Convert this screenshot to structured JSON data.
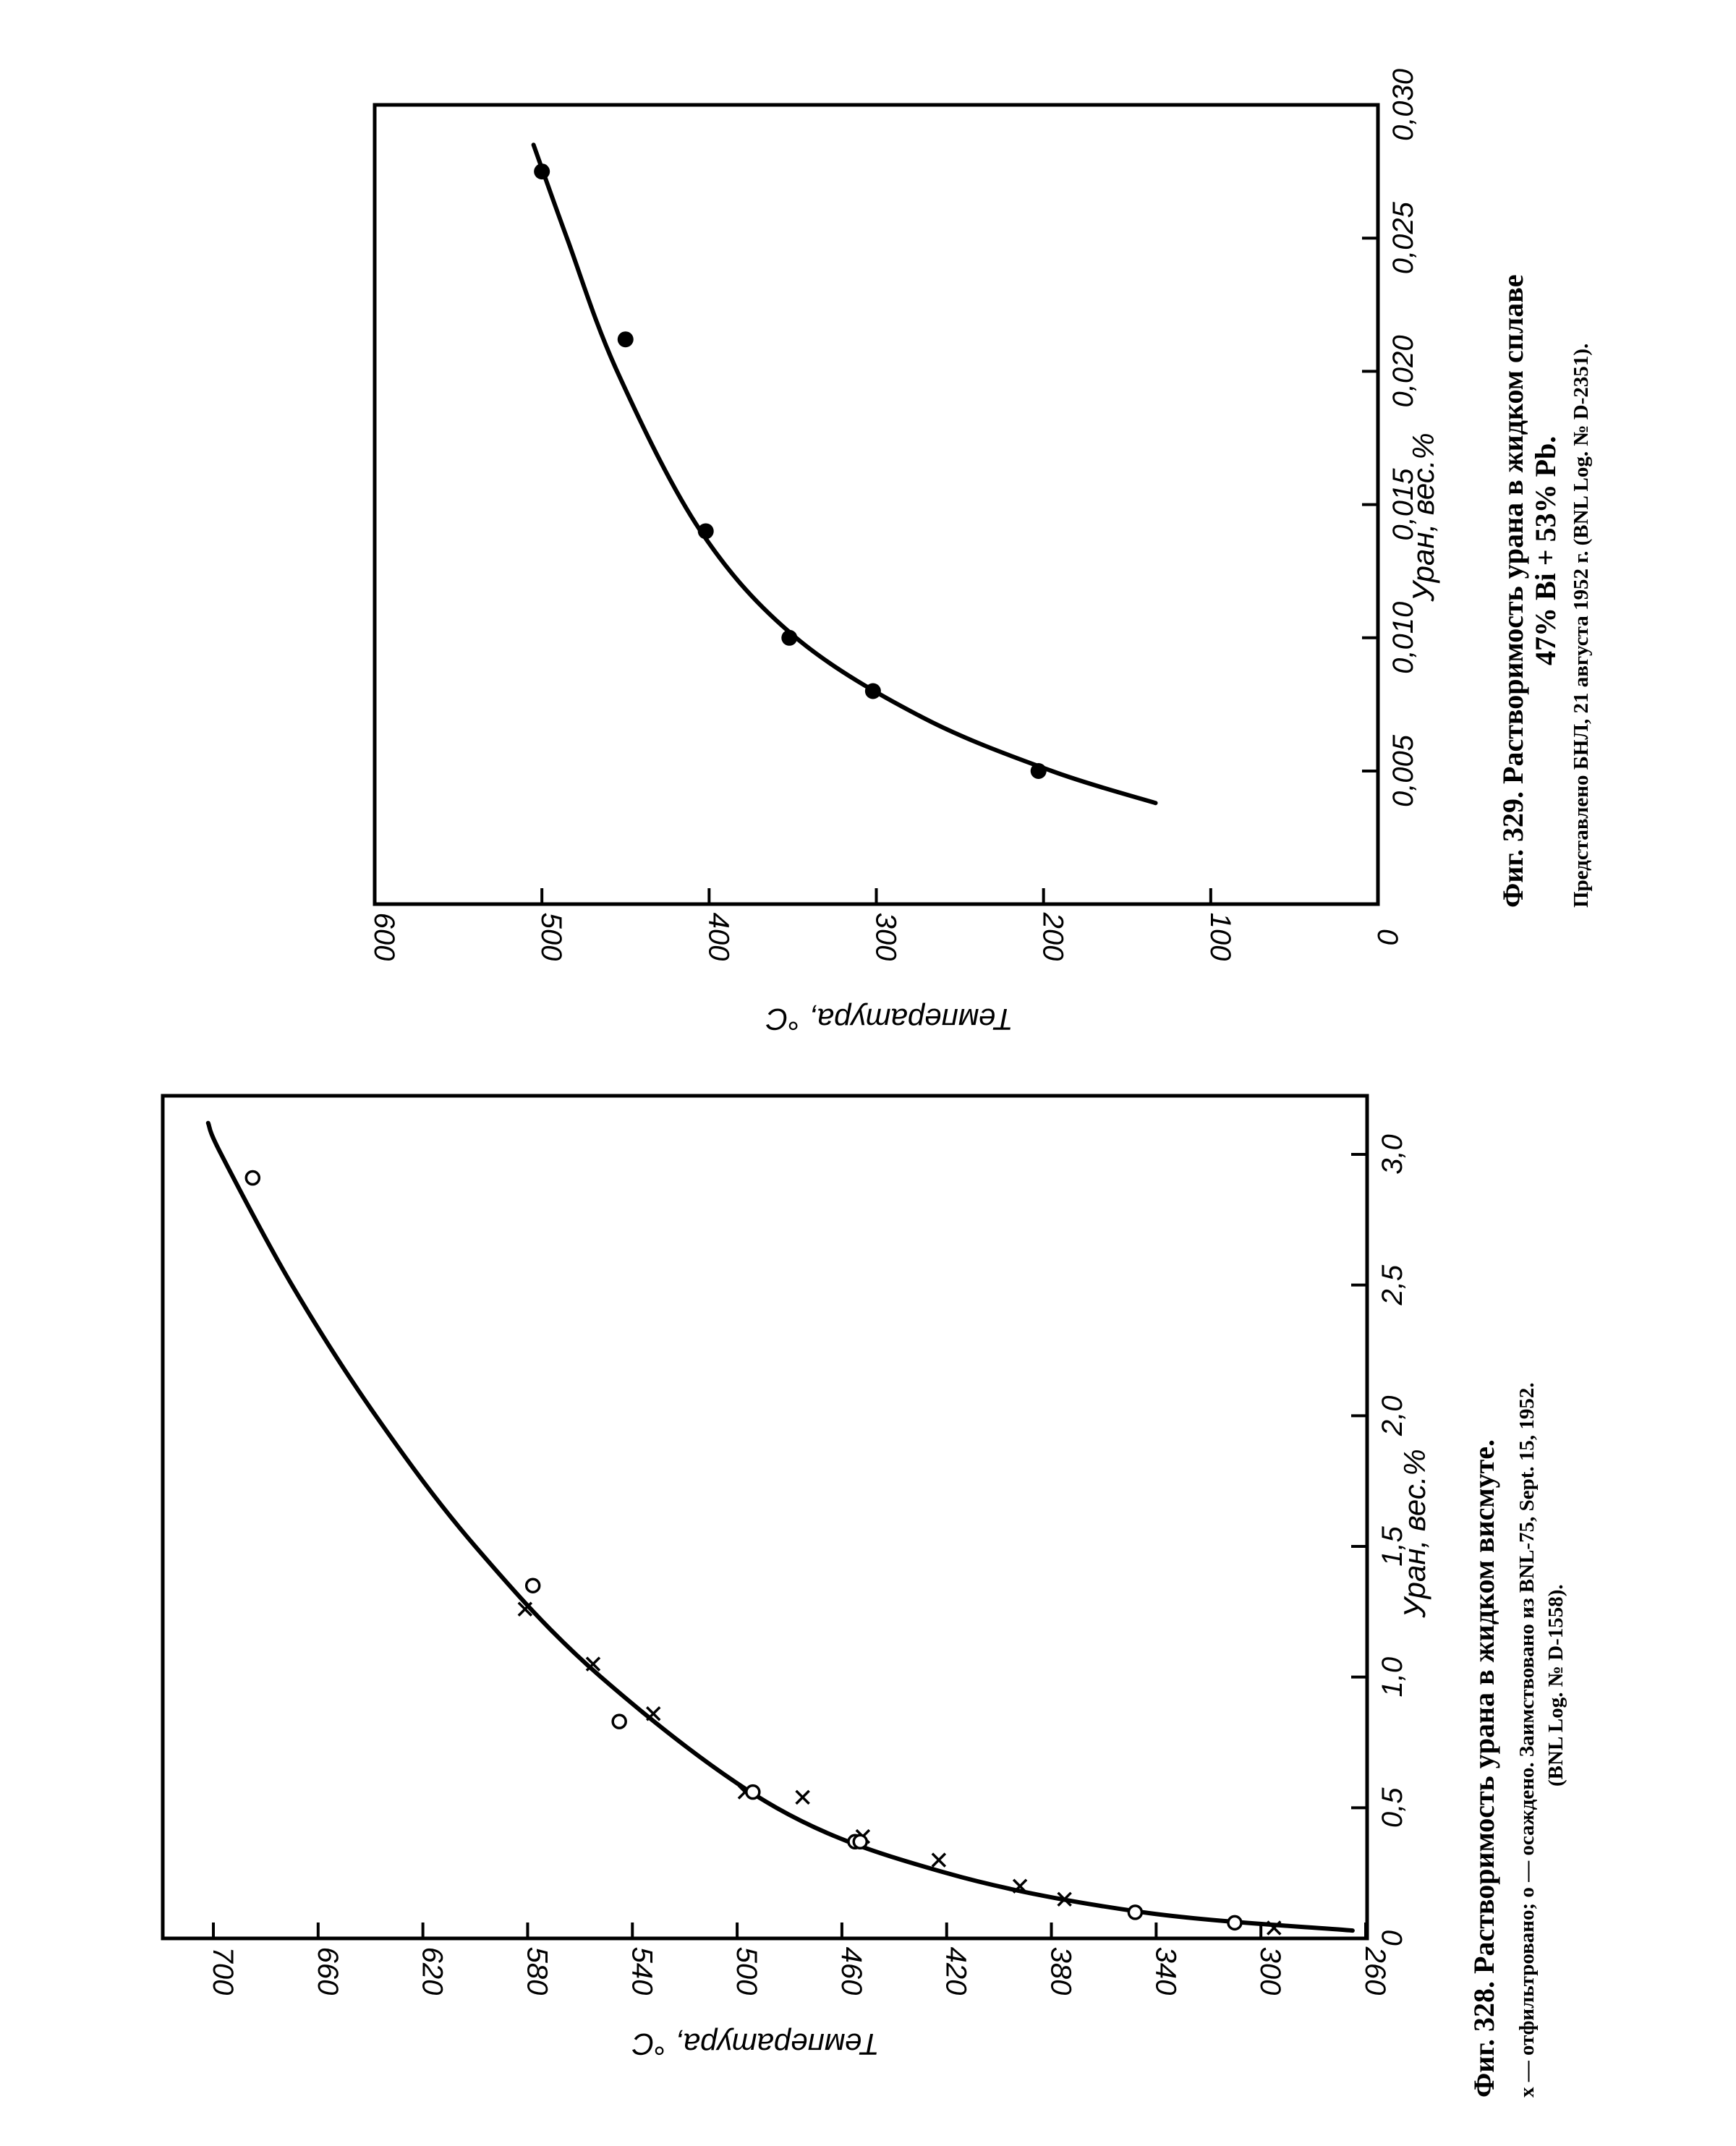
{
  "chart_data": [
    {
      "type": "scatter",
      "title": "Фиг. 328. Растворимость урана в жидком висмуте.",
      "legend_note": "x — отфильтровано; о — осаждено. Заимствовано из BNL-75, Sept. 15, 1952.",
      "source": "(BNL Log. № D-1558).",
      "xlabel": "Уран, вес.%",
      "ylabel": "Температура, °С",
      "xlim": [
        0,
        3.2
      ],
      "ylim": [
        260,
        720
      ],
      "x_ticks": [
        "0",
        "0,5",
        "1,0",
        "1,5",
        "2,0",
        "2,5",
        "3,0"
      ],
      "y_ticks": [
        "260",
        "300",
        "340",
        "380",
        "420",
        "460",
        "500",
        "540",
        "580",
        "620",
        "660",
        "700"
      ],
      "grid": false,
      "series": [
        {
          "name": "отфильтровано",
          "marker": "x",
          "points": [
            [
              1.26,
              581
            ],
            [
              1.05,
              555
            ],
            [
              0.86,
              532
            ],
            [
              0.56,
              497
            ],
            [
              0.54,
              475
            ],
            [
              0.39,
              452
            ],
            [
              0.3,
              423
            ],
            [
              0.2,
              392
            ],
            [
              0.15,
              375
            ],
            [
              0.04,
              295
            ]
          ]
        },
        {
          "name": "осаждено",
          "marker": "o",
          "points": [
            [
              2.91,
              685
            ],
            [
              1.35,
              578
            ],
            [
              0.83,
              545
            ],
            [
              0.56,
              494
            ],
            [
              0.37,
              455
            ],
            [
              0.37,
              453
            ],
            [
              0.1,
              348
            ],
            [
              0.06,
              310
            ]
          ]
        }
      ],
      "curve": [
        [
          0.03,
          265
        ],
        [
          0.1,
          345
        ],
        [
          0.25,
          420
        ],
        [
          0.5,
          485
        ],
        [
          1.0,
          552
        ],
        [
          1.5,
          600
        ],
        [
          2.0,
          638
        ],
        [
          2.5,
          670
        ],
        [
          3.0,
          697
        ],
        [
          3.12,
          702
        ]
      ]
    },
    {
      "type": "scatter",
      "title": "Фиг. 329. Растворимость урана в жидком сплаве 47% Bi + 53% Pb.",
      "source": "Представлено БНЛ, 21 августа 1952 г. (BNL Log. № D-2351).",
      "xlabel": "Уран, вес.%",
      "ylabel": "Температура, °С",
      "xlim": [
        0,
        0.03
      ],
      "ylim": [
        0,
        600
      ],
      "x_ticks": [
        "0,005",
        "0,010",
        "0,015",
        "0,020",
        "0,025",
        "0,030"
      ],
      "y_ticks": [
        "0",
        "100",
        "200",
        "300",
        "400",
        "500",
        "600"
      ],
      "grid": false,
      "series": [
        {
          "name": "",
          "marker": "filled-circle",
          "points": [
            [
              0.005,
              203
            ],
            [
              0.008,
              302
            ],
            [
              0.01,
              352
            ],
            [
              0.014,
              402
            ],
            [
              0.0212,
              450
            ],
            [
              0.0275,
              500
            ]
          ]
        }
      ],
      "curve": [
        [
          0.0038,
          133
        ],
        [
          0.005,
          195
        ],
        [
          0.007,
          272
        ],
        [
          0.01,
          348
        ],
        [
          0.014,
          405
        ],
        [
          0.02,
          455
        ],
        [
          0.025,
          485
        ],
        [
          0.0285,
          505
        ]
      ]
    }
  ],
  "captions": {
    "fig328": {
      "title": "Фиг. 328. Растворимость урана в жидком висмуте.",
      "note": "x — отфильтровано; о — осаждено. Заимствовано из BNL-75, Sept. 15, 1952.",
      "source": "(BNL Log. № D-1558)."
    },
    "fig329": {
      "title1": "Фиг. 329. Растворимость урана в жидком сплаве",
      "title2": "47% Bi + 53% Pb.",
      "source": "Представлено БНЛ, 21 августа 1952 г. (BNL Log. № D-2351)."
    }
  }
}
